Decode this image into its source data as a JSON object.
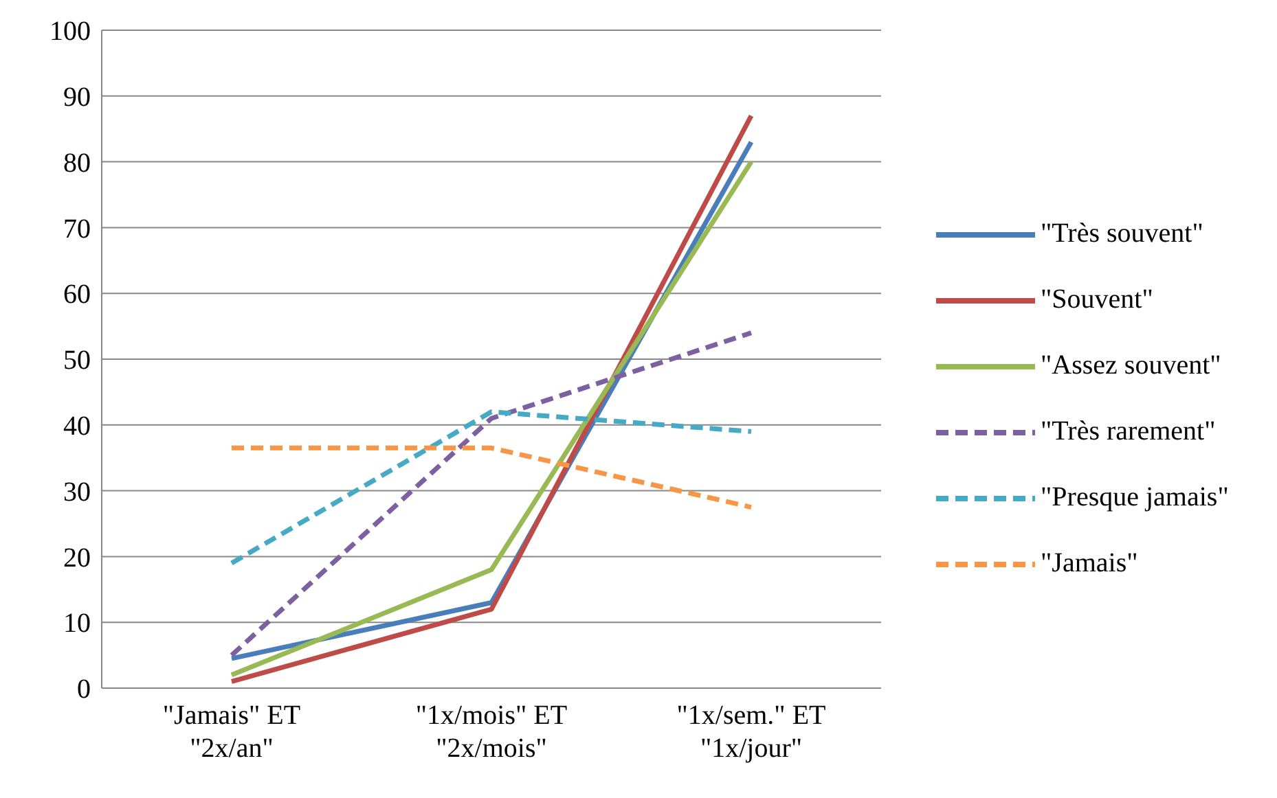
{
  "chart_data": {
    "type": "line",
    "categories": [
      "\"Jamais\" ET \"2x/an\"",
      "\"1x/mois\" ET \"2x/mois\"",
      "\"1x/sem.\" ET \"1x/jour\""
    ],
    "series": [
      {
        "name": "\"Très souvent\"",
        "color": "#4a7ebb",
        "values": [
          4.5,
          13,
          83
        ],
        "line_style": "solid"
      },
      {
        "name": "\"Souvent\"",
        "color": "#be4b48",
        "values": [
          1,
          12,
          87
        ],
        "line_style": "solid"
      },
      {
        "name": "\"Assez souvent\"",
        "color": "#98b954",
        "values": [
          2,
          18,
          80
        ],
        "line_style": "solid"
      },
      {
        "name": "\"Très rarement\"",
        "color": "#7d60a0",
        "values": [
          5,
          41,
          54
        ],
        "line_style": "dashed"
      },
      {
        "name": "\"Presque jamais\"",
        "color": "#46aac5",
        "values": [
          19,
          42,
          39
        ],
        "line_style": "dashed"
      },
      {
        "name": "\"Jamais\"",
        "color": "#f79646",
        "values": [
          36.5,
          36.5,
          27.5
        ],
        "line_style": "dashed"
      }
    ],
    "ylim": [
      0,
      100
    ],
    "yticks": [
      0,
      10,
      20,
      30,
      40,
      50,
      60,
      70,
      80,
      90,
      100
    ],
    "grid": "y",
    "legend": "right",
    "marker": "none"
  }
}
